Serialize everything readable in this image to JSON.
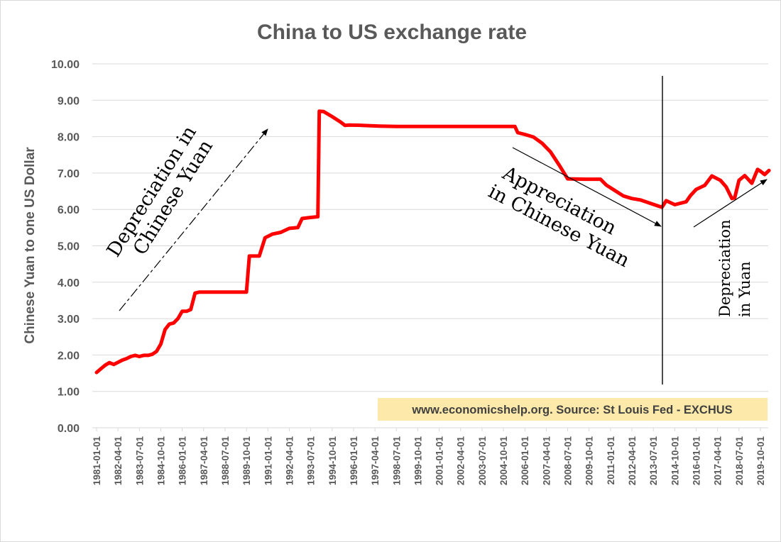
{
  "chart_data": {
    "type": "line",
    "title": "China to US exchange rate",
    "ylabel": "Chinese Yuan to one US Dollar",
    "xlabel": "",
    "ylim": [
      0,
      10
    ],
    "y_ticks": [
      "0.00",
      "1.00",
      "2.00",
      "3.00",
      "4.00",
      "5.00",
      "6.00",
      "7.00",
      "8.00",
      "9.00",
      "10.00"
    ],
    "x_ticks": [
      "1981-01-01",
      "1982-04-01",
      "1983-07-01",
      "1984-10-01",
      "1986-01-01",
      "1987-04-01",
      "1988-07-01",
      "1989-10-01",
      "1991-01-01",
      "1992-04-01",
      "1993-07-01",
      "1994-10-01",
      "1996-01-01",
      "1997-04-01",
      "1998-07-01",
      "1999-10-01",
      "2001-01-01",
      "2002-04-01",
      "2003-07-01",
      "2004-10-01",
      "2006-01-01",
      "2007-04-01",
      "2008-07-01",
      "2009-10-01",
      "2011-01-01",
      "2012-04-01",
      "2013-07-01",
      "2014-10-01",
      "2016-01-01",
      "2017-04-01",
      "2018-07-01",
      "2019-10-01"
    ],
    "grid": true,
    "legend": "none",
    "series": [
      {
        "color": "#ff0000",
        "points": [
          [
            "1981-01-01",
            1.52
          ],
          [
            "1981-04-01",
            1.62
          ],
          [
            "1981-07-01",
            1.72
          ],
          [
            "1981-10-01",
            1.79
          ],
          [
            "1982-01-01",
            1.74
          ],
          [
            "1982-04-01",
            1.8
          ],
          [
            "1982-07-01",
            1.86
          ],
          [
            "1982-10-01",
            1.9
          ],
          [
            "1983-01-01",
            1.96
          ],
          [
            "1983-04-01",
            1.99
          ],
          [
            "1983-07-01",
            1.96
          ],
          [
            "1983-10-01",
            1.99
          ],
          [
            "1984-01-01",
            1.99
          ],
          [
            "1984-04-01",
            2.02
          ],
          [
            "1984-07-01",
            2.1
          ],
          [
            "1984-10-01",
            2.3
          ],
          [
            "1985-01-01",
            2.7
          ],
          [
            "1985-04-01",
            2.85
          ],
          [
            "1985-07-01",
            2.88
          ],
          [
            "1985-10-01",
            3.0
          ],
          [
            "1986-01-01",
            3.2
          ],
          [
            "1986-04-01",
            3.2
          ],
          [
            "1986-07-01",
            3.25
          ],
          [
            "1986-10-01",
            3.7
          ],
          [
            "1987-01-01",
            3.73
          ],
          [
            "1987-07-01",
            3.73
          ],
          [
            "1988-01-01",
            3.73
          ],
          [
            "1988-07-01",
            3.73
          ],
          [
            "1989-01-01",
            3.73
          ],
          [
            "1989-10-01",
            3.73
          ],
          [
            "1989-12-01",
            4.72
          ],
          [
            "1990-07-01",
            4.72
          ],
          [
            "1990-11-01",
            5.22
          ],
          [
            "1991-04-01",
            5.32
          ],
          [
            "1991-10-01",
            5.37
          ],
          [
            "1992-04-01",
            5.48
          ],
          [
            "1992-10-01",
            5.5
          ],
          [
            "1993-01-01",
            5.75
          ],
          [
            "1993-07-01",
            5.78
          ],
          [
            "1993-12-01",
            5.8
          ],
          [
            "1994-01-01",
            8.7
          ],
          [
            "1994-04-01",
            8.69
          ],
          [
            "1994-10-01",
            8.55
          ],
          [
            "1995-04-01",
            8.4
          ],
          [
            "1995-07-01",
            8.31
          ],
          [
            "1995-10-01",
            8.32
          ],
          [
            "1996-07-01",
            8.31
          ],
          [
            "1997-07-01",
            8.29
          ],
          [
            "1998-07-01",
            8.28
          ],
          [
            "2000-07-01",
            8.28
          ],
          [
            "2002-07-01",
            8.28
          ],
          [
            "2004-07-01",
            8.28
          ],
          [
            "2005-06-01",
            8.28
          ],
          [
            "2005-08-01",
            8.11
          ],
          [
            "2006-01-01",
            8.06
          ],
          [
            "2006-07-01",
            7.99
          ],
          [
            "2007-01-01",
            7.82
          ],
          [
            "2007-07-01",
            7.58
          ],
          [
            "2008-01-01",
            7.22
          ],
          [
            "2008-07-01",
            6.84
          ],
          [
            "2009-07-01",
            6.83
          ],
          [
            "2010-06-01",
            6.83
          ],
          [
            "2010-10-01",
            6.67
          ],
          [
            "2011-04-01",
            6.52
          ],
          [
            "2011-10-01",
            6.37
          ],
          [
            "2012-04-01",
            6.3
          ],
          [
            "2012-10-01",
            6.26
          ],
          [
            "2013-04-01",
            6.18
          ],
          [
            "2013-10-01",
            6.1
          ],
          [
            "2014-01-01",
            6.06
          ],
          [
            "2014-04-01",
            6.24
          ],
          [
            "2014-10-01",
            6.13
          ],
          [
            "2015-06-01",
            6.21
          ],
          [
            "2015-09-01",
            6.38
          ],
          [
            "2016-01-01",
            6.55
          ],
          [
            "2016-07-01",
            6.66
          ],
          [
            "2016-12-01",
            6.92
          ],
          [
            "2017-06-01",
            6.8
          ],
          [
            "2017-10-01",
            6.62
          ],
          [
            "2018-02-01",
            6.3
          ],
          [
            "2018-04-01",
            6.32
          ],
          [
            "2018-07-01",
            6.8
          ],
          [
            "2018-11-01",
            6.93
          ],
          [
            "2019-04-01",
            6.72
          ],
          [
            "2019-08-01",
            7.1
          ],
          [
            "2019-10-01",
            7.05
          ],
          [
            "2020-01-01",
            6.96
          ],
          [
            "2020-04-01",
            7.07
          ]
        ]
      }
    ],
    "annotations": [
      {
        "text_lines": [
          "Depreciation in",
          "Chinese Yuan"
        ]
      },
      {
        "text_lines": [
          "Appreciation",
          "in Chinese Yuan"
        ]
      },
      {
        "text_lines": [
          "Depreciation",
          "in Yuan"
        ]
      }
    ],
    "source_note": "www.economicshelp.org. Source: St Louis Fed - EXCHUS",
    "colors": {
      "line": "#ff0000",
      "grid": "#d9d9d9",
      "text": "#595959",
      "source_box": "#fde9a9"
    }
  }
}
